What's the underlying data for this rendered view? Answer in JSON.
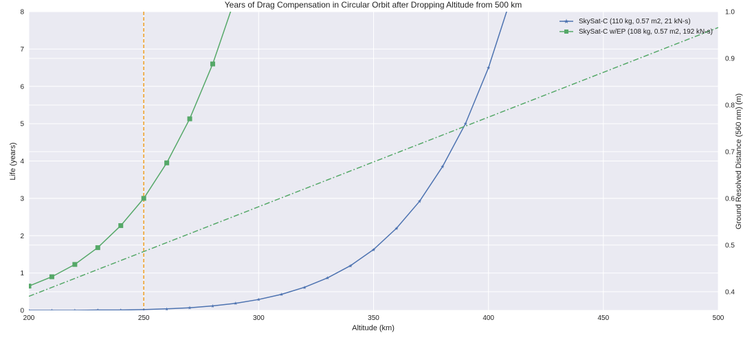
{
  "chart_data": {
    "type": "line",
    "title": "Years of Drag Compensation in Circular Orbit after Dropping Altitude from 500 km",
    "xlabel": "Altitude (km)",
    "ylabel": "Life (years)",
    "y2label": "Ground Resolved Distance (560 nm) (m)",
    "xlim": [
      200,
      500
    ],
    "ylim": [
      0,
      8
    ],
    "y2lim": [
      0.36,
      1.0
    ],
    "xticks": [
      "200",
      "250",
      "300",
      "350",
      "400",
      "450",
      "500"
    ],
    "yticks": [
      "0",
      "1",
      "2",
      "3",
      "4",
      "5",
      "6",
      "7",
      "8"
    ],
    "y2ticks": [
      "0.4",
      "0.5",
      "0.6",
      "0.7",
      "0.8",
      "0.9",
      "1.0"
    ],
    "grid": true,
    "legend_position": "top-right",
    "series": [
      {
        "name": "SkySat-C (110 kg, 0.57 m2, 21 kN-s)",
        "color": "#4c72b0",
        "marker": "star",
        "axis": "left",
        "x": [
          200,
          210,
          220,
          230,
          240,
          250,
          260,
          270,
          280,
          290,
          300,
          310,
          320,
          330,
          340,
          350,
          360,
          370,
          380,
          390,
          400,
          410
        ],
        "y": [
          0.0,
          0.0,
          0.0,
          0.01,
          0.01,
          0.02,
          0.04,
          0.07,
          0.12,
          0.19,
          0.29,
          0.43,
          0.62,
          0.87,
          1.2,
          1.63,
          2.2,
          2.92,
          3.85,
          5.0,
          6.5,
          8.4
        ]
      },
      {
        "name": "SkySat-C w/EP (108 kg, 0.57 m2, 192 kN-s)",
        "color": "#55a868",
        "marker": "square",
        "axis": "left",
        "x": [
          200,
          210,
          220,
          230,
          240,
          250,
          260,
          270,
          280,
          290
        ],
        "y": [
          0.65,
          0.9,
          1.23,
          1.68,
          2.27,
          3.0,
          3.95,
          5.13,
          6.6,
          8.4
        ]
      },
      {
        "name": "",
        "color": "#55a868",
        "style": "dashdot",
        "axis": "right",
        "x": [
          200,
          500
        ],
        "y": [
          0.39,
          0.966
        ]
      }
    ],
    "annotations": [
      {
        "type": "vline",
        "x": 250,
        "color": "#f0a020",
        "style": "dashed"
      }
    ]
  }
}
